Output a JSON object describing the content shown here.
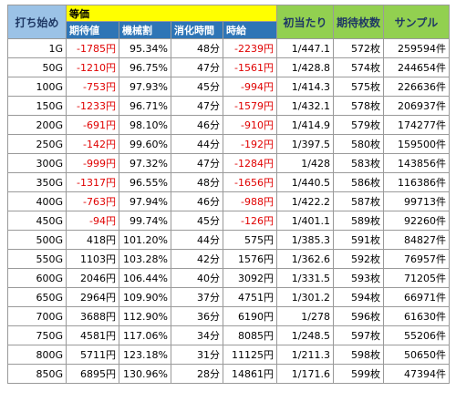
{
  "header": {
    "start": "打ち始め",
    "group": "等価",
    "sub": [
      "期待値",
      "機械割",
      "消化時間",
      "時給"
    ],
    "extra": [
      "初当たり",
      "期待枚数",
      "サンプル"
    ]
  },
  "table": {
    "rows": [
      [
        "1G",
        "-1785円",
        "95.34%",
        "48分",
        "-2239円",
        "1/447.1",
        "572枚",
        "259594件"
      ],
      [
        "50G",
        "-1210円",
        "96.75%",
        "47分",
        "-1561円",
        "1/428.8",
        "574枚",
        "244654件"
      ],
      [
        "100G",
        "-753円",
        "97.93%",
        "45分",
        "-994円",
        "1/414.3",
        "575枚",
        "226636件"
      ],
      [
        "150G",
        "-1233円",
        "96.71%",
        "47分",
        "-1579円",
        "1/432.1",
        "578枚",
        "206937件"
      ],
      [
        "200G",
        "-691円",
        "98.10%",
        "46分",
        "-910円",
        "1/414.9",
        "579枚",
        "174277件"
      ],
      [
        "250G",
        "-142円",
        "99.60%",
        "44分",
        "-192円",
        "1/397.5",
        "580枚",
        "159500件"
      ],
      [
        "300G",
        "-999円",
        "97.32%",
        "47分",
        "-1284円",
        "1/428",
        "583枚",
        "143856件"
      ],
      [
        "350G",
        "-1317円",
        "96.55%",
        "48分",
        "-1656円",
        "1/440.5",
        "586枚",
        "116386件"
      ],
      [
        "400G",
        "-763円",
        "97.94%",
        "46分",
        "-988円",
        "1/422.2",
        "587枚",
        "99713件"
      ],
      [
        "450G",
        "-94円",
        "99.74%",
        "45分",
        "-126円",
        "1/401.1",
        "589枚",
        "92260件"
      ],
      [
        "500G",
        "418円",
        "101.20%",
        "44分",
        "575円",
        "1/385.3",
        "591枚",
        "84827件"
      ],
      [
        "550G",
        "1103円",
        "103.28%",
        "42分",
        "1576円",
        "1/362.6",
        "592枚",
        "76957件"
      ],
      [
        "600G",
        "2046円",
        "106.44%",
        "40分",
        "3092円",
        "1/331.5",
        "593枚",
        "71205件"
      ],
      [
        "650G",
        "2964円",
        "109.90%",
        "37分",
        "4751円",
        "1/301.2",
        "594枚",
        "66971件"
      ],
      [
        "700G",
        "3688円",
        "112.90%",
        "36分",
        "6190円",
        "1/278",
        "596枚",
        "61630件"
      ],
      [
        "750G",
        "4581円",
        "117.06%",
        "34分",
        "8085円",
        "1/248.5",
        "597枚",
        "55206件"
      ],
      [
        "800G",
        "5711円",
        "123.18%",
        "31分",
        "11125円",
        "1/211.3",
        "598枚",
        "50650件"
      ],
      [
        "850G",
        "6895円",
        "130.96%",
        "28分",
        "14861円",
        "1/171.6",
        "599枚",
        "47394件"
      ]
    ]
  }
}
